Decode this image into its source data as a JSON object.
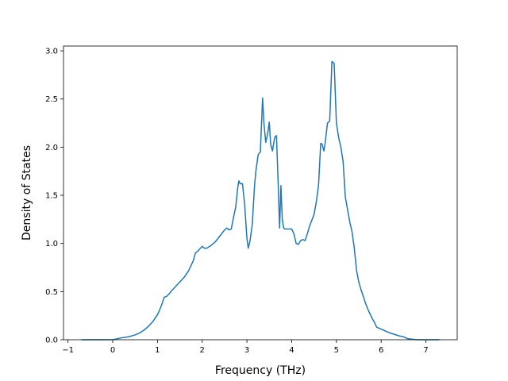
{
  "chart_data": {
    "type": "line",
    "title": "",
    "xlabel": "Frequency (THz)",
    "ylabel": "Density of States",
    "xlim": [
      -1.1,
      7.7
    ],
    "ylim": [
      0,
      3.05
    ],
    "xticks": [
      -1,
      0,
      1,
      2,
      3,
      4,
      5,
      6,
      7
    ],
    "yticks": [
      0.0,
      0.5,
      1.0,
      1.5,
      2.0,
      2.5,
      3.0
    ],
    "xtick_labels": [
      "−1",
      "0",
      "1",
      "2",
      "3",
      "4",
      "5",
      "6",
      "7"
    ],
    "ytick_labels": [
      "0.0",
      "0.5",
      "1.0",
      "1.5",
      "2.0",
      "2.5",
      "3.0"
    ],
    "grid": false,
    "legend": "none",
    "color": "#1f77b4",
    "series": [
      {
        "x": [
          -0.7,
          0.0,
          0.2,
          0.35,
          0.5,
          0.6,
          0.7,
          0.8,
          0.9,
          1.0,
          1.05,
          1.1,
          1.15,
          1.2,
          1.25,
          1.3,
          1.4,
          1.5,
          1.6,
          1.7,
          1.8,
          1.85,
          1.9,
          2.0,
          2.05,
          2.1,
          2.2,
          2.3,
          2.4,
          2.5,
          2.55,
          2.6,
          2.65,
          2.7,
          2.75,
          2.8,
          2.82,
          2.85,
          2.9,
          2.95,
          3.0,
          3.03,
          3.07,
          3.12,
          3.17,
          3.2,
          3.25,
          3.3,
          3.35,
          3.38,
          3.42,
          3.46,
          3.5,
          3.53,
          3.57,
          3.62,
          3.66,
          3.7,
          3.73,
          3.76,
          3.79,
          3.82,
          3.85,
          3.9,
          4.0,
          4.05,
          4.1,
          4.15,
          4.2,
          4.25,
          4.3,
          4.35,
          4.4,
          4.45,
          4.5,
          4.55,
          4.6,
          4.65,
          4.68,
          4.72,
          4.75,
          4.8,
          4.85,
          4.9,
          4.95,
          5.0,
          5.05,
          5.1,
          5.15,
          5.2,
          5.25,
          5.3,
          5.35,
          5.4,
          5.45,
          5.5,
          5.55,
          5.6,
          5.65,
          5.7,
          5.75,
          5.8,
          5.85,
          5.9,
          6.0,
          6.2,
          6.4,
          6.5,
          6.6,
          6.8,
          7.0,
          7.3
        ],
        "y": [
          0.0,
          0.0,
          0.02,
          0.03,
          0.05,
          0.07,
          0.1,
          0.14,
          0.19,
          0.26,
          0.31,
          0.37,
          0.44,
          0.45,
          0.47,
          0.5,
          0.55,
          0.6,
          0.65,
          0.72,
          0.82,
          0.9,
          0.92,
          0.97,
          0.95,
          0.95,
          0.98,
          1.02,
          1.08,
          1.14,
          1.16,
          1.14,
          1.15,
          1.27,
          1.38,
          1.6,
          1.65,
          1.62,
          1.62,
          1.4,
          1.05,
          0.95,
          1.03,
          1.2,
          1.6,
          1.75,
          1.92,
          1.95,
          2.51,
          2.25,
          2.05,
          2.13,
          2.26,
          2.03,
          1.96,
          2.1,
          2.12,
          1.6,
          1.16,
          1.6,
          1.25,
          1.16,
          1.15,
          1.15,
          1.15,
          1.1,
          1.0,
          0.99,
          1.03,
          1.04,
          1.03,
          1.1,
          1.18,
          1.24,
          1.3,
          1.43,
          1.6,
          2.04,
          2.03,
          1.96,
          2.05,
          2.25,
          2.27,
          2.89,
          2.87,
          2.25,
          2.1,
          2.0,
          1.85,
          1.48,
          1.35,
          1.22,
          1.12,
          0.95,
          0.72,
          0.6,
          0.52,
          0.45,
          0.38,
          0.32,
          0.27,
          0.22,
          0.18,
          0.13,
          0.11,
          0.07,
          0.04,
          0.03,
          0.01,
          0.0,
          0.0,
          0.0
        ]
      }
    ]
  }
}
